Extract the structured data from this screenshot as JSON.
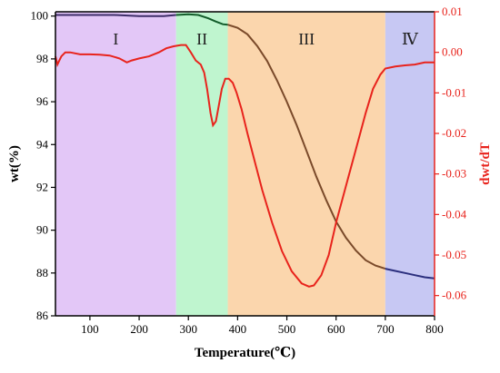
{
  "chart_data": {
    "type": "line",
    "x": {
      "label": "Temperature(℃)",
      "lim": [
        30,
        800
      ],
      "ticks": [
        100,
        200,
        300,
        400,
        500,
        600,
        700,
        800
      ]
    },
    "y_left": {
      "label": "wt(%)",
      "lim": [
        86,
        100.2
      ],
      "ticks": [
        86,
        88,
        90,
        92,
        94,
        96,
        98,
        100
      ]
    },
    "y_right": {
      "label": "dwt/dT",
      "lim": [
        -0.065,
        0.01
      ],
      "ticks": [
        {
          "value": 0.01,
          "text": "0.01"
        },
        {
          "value": 0.0,
          "text": "0.00"
        },
        {
          "value": -0.01,
          "text": "-0.01"
        },
        {
          "value": -0.02,
          "text": "-0.02"
        },
        {
          "value": -0.03,
          "text": "-0.03"
        },
        {
          "value": -0.04,
          "text": "-0.04"
        },
        {
          "value": -0.05,
          "text": "-0.05"
        },
        {
          "value": -0.06,
          "text": "-0.06"
        }
      ],
      "color": "#e8231c"
    },
    "regions": [
      {
        "label": "I",
        "start": 30,
        "end": 275,
        "color": "#e3c7f7"
      },
      {
        "label": "II",
        "start": 275,
        "end": 380,
        "color": "#bff5cf"
      },
      {
        "label": "III",
        "start": 380,
        "end": 700,
        "color": "#fbd6ad"
      },
      {
        "label": "Ⅳ",
        "start": 700,
        "end": 800,
        "color": "#c7c8f3"
      }
    ],
    "series": [
      {
        "axis": "left",
        "colors": {
          "I": "#3d2c68",
          "II": "#125c2a",
          "III": "#7a4a2a",
          "IV": "#2b2f7e"
        },
        "points": [
          [
            30,
            100.05
          ],
          [
            60,
            100.05
          ],
          [
            100,
            100.05
          ],
          [
            150,
            100.05
          ],
          [
            200,
            100.0
          ],
          [
            250,
            100.0
          ],
          [
            275,
            100.05
          ],
          [
            300,
            100.08
          ],
          [
            320,
            100.05
          ],
          [
            340,
            99.9
          ],
          [
            355,
            99.75
          ],
          [
            370,
            99.62
          ],
          [
            380,
            99.6
          ],
          [
            400,
            99.45
          ],
          [
            420,
            99.15
          ],
          [
            440,
            98.6
          ],
          [
            460,
            97.9
          ],
          [
            480,
            97.0
          ],
          [
            500,
            96.0
          ],
          [
            520,
            94.9
          ],
          [
            540,
            93.7
          ],
          [
            560,
            92.5
          ],
          [
            580,
            91.4
          ],
          [
            600,
            90.4
          ],
          [
            620,
            89.65
          ],
          [
            640,
            89.05
          ],
          [
            660,
            88.6
          ],
          [
            680,
            88.35
          ],
          [
            700,
            88.2
          ],
          [
            720,
            88.1
          ],
          [
            740,
            88.0
          ],
          [
            760,
            87.9
          ],
          [
            780,
            87.8
          ],
          [
            800,
            87.75
          ]
        ]
      },
      {
        "axis": "right",
        "color": "#e8231c",
        "points": [
          [
            30,
            -0.001
          ],
          [
            34,
            -0.003
          ],
          [
            38,
            -0.002
          ],
          [
            42,
            -0.001
          ],
          [
            50,
            0.0
          ],
          [
            60,
            0.0
          ],
          [
            80,
            -0.0005
          ],
          [
            100,
            -0.0005
          ],
          [
            120,
            -0.0006
          ],
          [
            140,
            -0.0008
          ],
          [
            160,
            -0.0015
          ],
          [
            175,
            -0.0025
          ],
          [
            185,
            -0.002
          ],
          [
            200,
            -0.0015
          ],
          [
            220,
            -0.001
          ],
          [
            240,
            0.0
          ],
          [
            255,
            0.001
          ],
          [
            270,
            0.0015
          ],
          [
            285,
            0.0018
          ],
          [
            295,
            0.0018
          ],
          [
            305,
            0.0
          ],
          [
            315,
            -0.002
          ],
          [
            325,
            -0.003
          ],
          [
            332,
            -0.005
          ],
          [
            338,
            -0.009
          ],
          [
            345,
            -0.015
          ],
          [
            350,
            -0.018
          ],
          [
            356,
            -0.017
          ],
          [
            362,
            -0.013
          ],
          [
            368,
            -0.009
          ],
          [
            375,
            -0.0065
          ],
          [
            382,
            -0.0065
          ],
          [
            390,
            -0.0075
          ],
          [
            398,
            -0.01
          ],
          [
            408,
            -0.014
          ],
          [
            420,
            -0.02
          ],
          [
            435,
            -0.027
          ],
          [
            450,
            -0.034
          ],
          [
            470,
            -0.042
          ],
          [
            490,
            -0.049
          ],
          [
            510,
            -0.054
          ],
          [
            530,
            -0.057
          ],
          [
            545,
            -0.0578
          ],
          [
            555,
            -0.0575
          ],
          [
            570,
            -0.055
          ],
          [
            585,
            -0.05
          ],
          [
            600,
            -0.042
          ],
          [
            620,
            -0.033
          ],
          [
            640,
            -0.024
          ],
          [
            660,
            -0.015
          ],
          [
            675,
            -0.009
          ],
          [
            690,
            -0.0055
          ],
          [
            700,
            -0.004
          ],
          [
            720,
            -0.0035
          ],
          [
            740,
            -0.0032
          ],
          [
            760,
            -0.003
          ],
          [
            780,
            -0.0025
          ],
          [
            800,
            -0.0025
          ]
        ]
      }
    ]
  }
}
